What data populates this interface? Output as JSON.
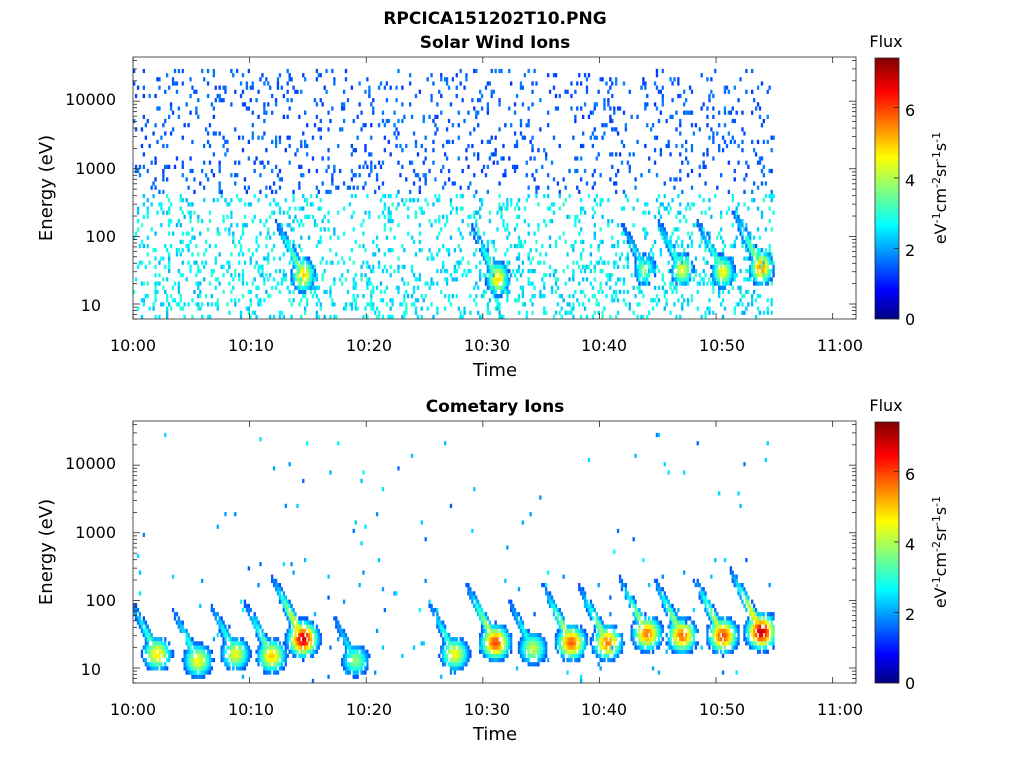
{
  "figure": {
    "title": "RPCICA151202T10.PNG"
  },
  "colorbar": {
    "label": "Flux",
    "ticks": [
      "0",
      "2",
      "4",
      "6"
    ],
    "range": [
      0,
      7.4
    ],
    "colormap": "jet"
  },
  "chart_data": [
    {
      "type": "heatmap",
      "title": "Solar Wind Ions",
      "xlabel": "Time",
      "ylabel": "Energy (eV)",
      "xlim": [
        "10:00",
        "11:02"
      ],
      "ylim": [
        6,
        45000
      ],
      "yscale": "log",
      "xticks": [
        "10:00",
        "10:10",
        "10:20",
        "10:30",
        "10:40",
        "10:50",
        "11:00"
      ],
      "yticks": [
        "10",
        "100",
        "1000",
        "10000"
      ],
      "data_end": "10:55",
      "description_of_content": "sparse scattered speckle; dense low-energy flux peaks",
      "hotspots": [
        {
          "time_min": 14.5,
          "energy_eV": 25,
          "flux": 5.0
        },
        {
          "time_min": 31.2,
          "energy_eV": 22,
          "flux": 4.9
        },
        {
          "time_min": 43.8,
          "energy_eV": 30,
          "flux": 3.8
        },
        {
          "time_min": 47.0,
          "energy_eV": 30,
          "flux": 4.5
        },
        {
          "time_min": 50.5,
          "energy_eV": 28,
          "flux": 4.6
        },
        {
          "time_min": 53.8,
          "energy_eV": 32,
          "flux": 5.5
        }
      ]
    },
    {
      "type": "heatmap",
      "title": "Cometary Ions",
      "xlabel": "Time",
      "ylabel": "Energy (eV)",
      "xlim": [
        "10:00",
        "11:02"
      ],
      "ylim": [
        6,
        45000
      ],
      "yscale": "log",
      "xticks": [
        "10:00",
        "10:10",
        "10:20",
        "10:30",
        "10:40",
        "10:50",
        "11:00"
      ],
      "yticks": [
        "10",
        "100",
        "1000",
        "10000"
      ],
      "data_end": "10:55",
      "hotspots": [
        {
          "time_min": 2.0,
          "energy_eV": 15,
          "flux": 4.8
        },
        {
          "time_min": 5.5,
          "energy_eV": 12,
          "flux": 4.6
        },
        {
          "time_min": 8.7,
          "energy_eV": 15,
          "flux": 4.5
        },
        {
          "time_min": 11.8,
          "energy_eV": 14,
          "flux": 5.0
        },
        {
          "time_min": 14.5,
          "energy_eV": 25,
          "flux": 6.8
        },
        {
          "time_min": 19.0,
          "energy_eV": 12,
          "flux": 3.8
        },
        {
          "time_min": 27.5,
          "energy_eV": 15,
          "flux": 4.6
        },
        {
          "time_min": 31.0,
          "energy_eV": 22,
          "flux": 6.0
        },
        {
          "time_min": 34.2,
          "energy_eV": 18,
          "flux": 4.2
        },
        {
          "time_min": 37.5,
          "energy_eV": 22,
          "flux": 5.8
        },
        {
          "time_min": 40.6,
          "energy_eV": 22,
          "flux": 5.6
        },
        {
          "time_min": 44.0,
          "energy_eV": 30,
          "flux": 5.6
        },
        {
          "time_min": 47.0,
          "energy_eV": 28,
          "flux": 5.7
        },
        {
          "time_min": 50.5,
          "energy_eV": 28,
          "flux": 6.0
        },
        {
          "time_min": 53.8,
          "energy_eV": 32,
          "flux": 6.9
        }
      ]
    }
  ]
}
